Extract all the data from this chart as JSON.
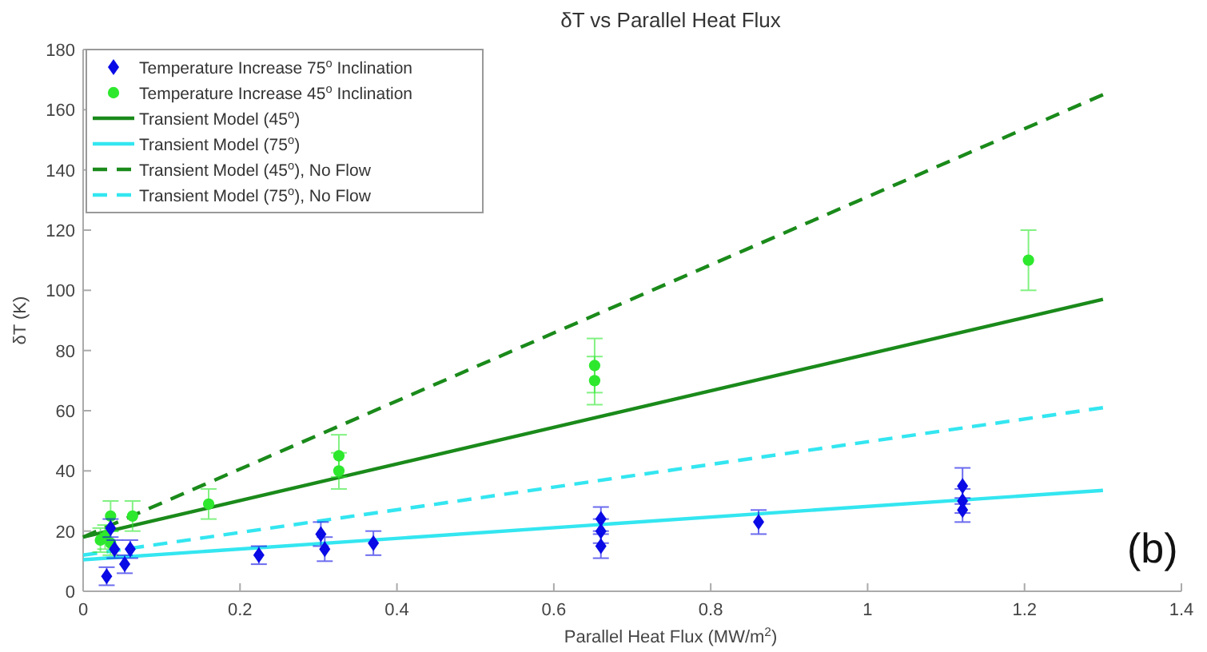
{
  "chart_data": {
    "type": "scatter",
    "title": "δT vs Parallel Heat Flux",
    "xlabel": "Parallel Heat Flux (MW/m$^{2}$)",
    "ylabel": "δT (K)",
    "xlim": [
      0,
      1.4
    ],
    "xticks": [
      0,
      0.2,
      0.4,
      0.6,
      0.8,
      1,
      1.2,
      1.4
    ],
    "ylim": [
      0,
      180
    ],
    "yticks": [
      0,
      20,
      40,
      60,
      80,
      100,
      120,
      140,
      160,
      180
    ],
    "grid": false,
    "legend": "top left",
    "annotations": [
      "(b)"
    ],
    "series": [
      {
        "name": "Temperature Increase 75$^{o}$ Inclination",
        "marker": "diamond",
        "color": "#0a0ae6",
        "x": [
          0.03,
          0.035,
          0.04,
          0.053,
          0.06,
          0.224,
          0.303,
          0.308,
          0.37,
          0.66,
          0.66,
          0.66,
          0.861,
          1.121,
          1.121,
          1.121
        ],
        "values": [
          5,
          21,
          14,
          9,
          14,
          12,
          19,
          14,
          16,
          24,
          20,
          15,
          23,
          35,
          30,
          27
        ],
        "errors": [
          3,
          3,
          3,
          3,
          3,
          3,
          4,
          4,
          4,
          4,
          4,
          4,
          4,
          6,
          4,
          4
        ]
      },
      {
        "name": "Temperature Increase 45$^{o}$ Inclination",
        "marker": "circle",
        "color": "#2ee82e",
        "x": [
          0.022,
          0.028,
          0.035,
          0.035,
          0.063,
          0.16,
          0.326,
          0.326,
          0.652,
          0.652,
          1.205
        ],
        "values": [
          17,
          18,
          25,
          16,
          25,
          29,
          45,
          40,
          75,
          70,
          110
        ],
        "errors": [
          4,
          4,
          5,
          4,
          5,
          5,
          7,
          6,
          9,
          8,
          10
        ]
      },
      {
        "name": "Transient Model (45$^{o}$)",
        "type": "line",
        "marker": "none",
        "line_style": "solid",
        "color": "#1a8a1a",
        "x": [
          0,
          1.3
        ],
        "values": [
          18,
          97
        ]
      },
      {
        "name": "Transient Model (75$^{o}$)",
        "type": "line",
        "marker": "none",
        "line_style": "solid",
        "color": "#33e6f0",
        "x": [
          0,
          1.3
        ],
        "values": [
          10.5,
          33.5
        ]
      },
      {
        "name": "Transient Model (45$^{o}$), No Flow",
        "type": "line",
        "marker": "none",
        "line_style": "dashed",
        "color": "#1a8a1a",
        "x": [
          0,
          1.3
        ],
        "values": [
          18,
          165
        ]
      },
      {
        "name": "Transient Model (75$^{o}$), No Flow",
        "type": "line",
        "marker": "none",
        "line_style": "dashed",
        "color": "#33e6f0",
        "x": [
          0,
          1.3
        ],
        "values": [
          12,
          61
        ]
      }
    ]
  }
}
